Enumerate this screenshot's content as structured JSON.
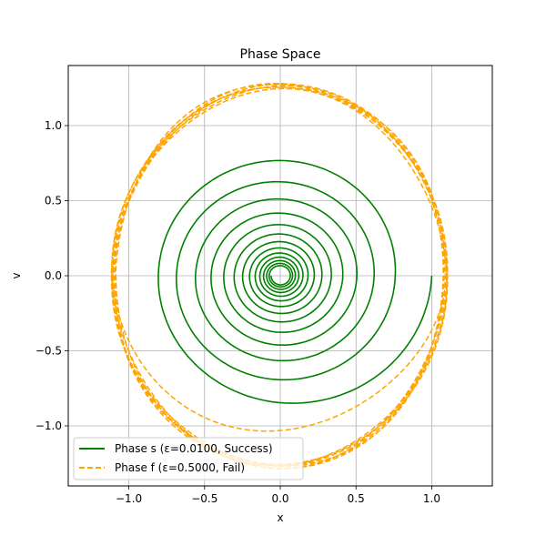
{
  "chart_data": {
    "type": "line",
    "title": "Phase Space",
    "xlabel": "x",
    "ylabel": "v",
    "xlim": [
      -1.4,
      1.4
    ],
    "ylim": [
      -1.4,
      1.4
    ],
    "xticks": [
      -1.0,
      -0.5,
      0.0,
      0.5,
      1.0
    ],
    "yticks": [
      -1.0,
      -0.5,
      0.0,
      0.5,
      1.0
    ],
    "xtick_labels": [
      "−1.0",
      "−0.5",
      "0.0",
      "0.5",
      "1.0"
    ],
    "ytick_labels": [
      "−1.0",
      "−0.5",
      "0.0",
      "0.5",
      "1.0"
    ],
    "grid": true,
    "legend_position": "lower-left",
    "series": [
      {
        "name": "Phase s (ε=0.0100, Success)",
        "color": "#008000",
        "style": "solid",
        "start": [
          1.0,
          0.0
        ],
        "end": [
          0.0,
          0.0
        ],
        "turns": 13.5,
        "r_start": 0.93,
        "r_end": 0.06,
        "aspect_v_over_x": 0.96
      },
      {
        "name": "Phase f (ε=0.5000, Fail)",
        "color": "#ffa500",
        "style": "dashed",
        "start": [
          1.0,
          0.0
        ],
        "x_range": [
          -1.1,
          1.09
        ],
        "v_range": [
          -1.27,
          1.27
        ],
        "first_loop_v_range": [
          -0.77,
          0.94
        ],
        "turns": 7.5
      }
    ]
  }
}
